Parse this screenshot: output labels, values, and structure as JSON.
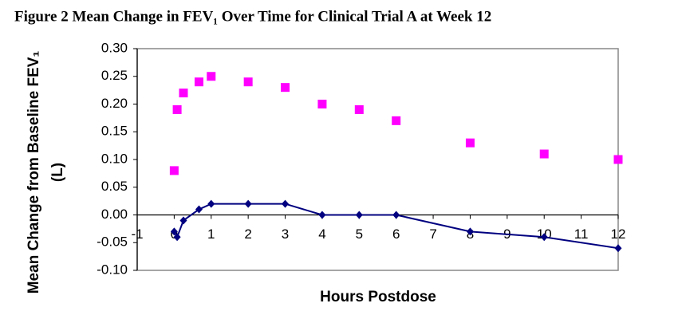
{
  "chart_data": {
    "type": "line",
    "title": "Figure 2  Mean Change in FEV₁ Over Time for Clinical Trial A at Week 12",
    "y_label": [
      "Mean Change from Baseline FEV₁",
      "(L)"
    ],
    "x_label": "Hours Postdose",
    "x": [
      0,
      0.08,
      0.25,
      0.67,
      1,
      2,
      3,
      4,
      5,
      6,
      8,
      10,
      12
    ],
    "series": [
      {
        "color": "#ff00ff",
        "marker": "square",
        "line": false,
        "values": [
          0.08,
          0.19,
          0.22,
          0.24,
          0.25,
          0.24,
          0.23,
          0.2,
          0.19,
          0.17,
          0.13,
          0.11,
          0.1
        ]
      },
      {
        "color": "#000080",
        "marker": "diamond",
        "line": true,
        "values": [
          -0.03,
          -0.04,
          -0.01,
          0.01,
          0.02,
          0.02,
          0.02,
          0.0,
          0.0,
          0.0,
          -0.03,
          -0.04,
          -0.06
        ]
      }
    ],
    "xlim": [
      -1,
      12
    ],
    "xticks": [
      -1,
      0,
      1,
      2,
      3,
      4,
      5,
      6,
      7,
      8,
      9,
      10,
      11,
      12
    ],
    "ylim": [
      -0.1,
      0.3
    ],
    "yticks": [
      {
        "value": -0.1,
        "label": "-0.10"
      },
      {
        "value": -0.05,
        "label": "-0.05"
      },
      {
        "value": 0,
        "label": "0.00"
      },
      {
        "value": 0.05,
        "label": "0.05"
      },
      {
        "value": 0.1,
        "label": "0.10"
      },
      {
        "value": 0.15,
        "label": "0.15"
      },
      {
        "value": 0.2,
        "label": "0.20"
      },
      {
        "value": 0.25,
        "label": "0.25"
      },
      {
        "value": 0.3,
        "label": "0.30"
      }
    ],
    "grid": false
  }
}
